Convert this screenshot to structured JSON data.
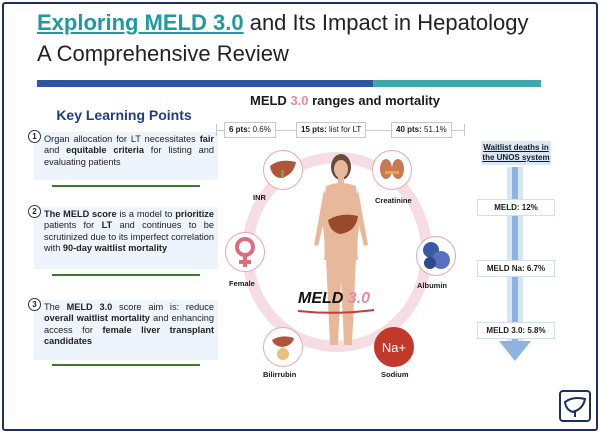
{
  "header": {
    "title_highlight": "Exploring MELD 3.0",
    "title_rest": " and Its Impact in Hepatology",
    "subtitle": "A Comprehensive Review"
  },
  "key_points": {
    "heading": "Key Learning Points",
    "items": [
      {
        "number": "1",
        "t1": "Organ allocation for LT necessitates ",
        "b1": "fair",
        "t2": " and ",
        "b2": "equitable criteria",
        "t3": " for listing and evaluating patients"
      },
      {
        "number": "2",
        "b1": "The MELD score",
        "t1": " is a model to ",
        "b2": "prioritize",
        "t2": " patients for ",
        "b3": "LT",
        "t3": " and continues to be scrutinized due to its imperfect correlation with ",
        "b4": "90-day waitlist mortality"
      },
      {
        "number": "3",
        "t1": "The ",
        "b1": "MELD 3.0",
        "t2": " score aim is: reduce ",
        "b2": "overall waitlist mortality",
        "t3": " and enhancing access for ",
        "b3": "female liver transplant candidates"
      }
    ]
  },
  "center": {
    "title_a": "MELD ",
    "title_b": "3.0",
    "title_c": " ranges and mortality",
    "ranges": [
      {
        "bold": "6 pts:",
        "rest": " 0.6%"
      },
      {
        "bold": "15 pts:",
        "rest": " list for LT"
      },
      {
        "bold": "40 pts:",
        "rest": " 51.1%"
      }
    ],
    "labels": {
      "inr": "INR",
      "creatinine": "Creatinine",
      "female": "Female",
      "albumin": "Albumin",
      "bilirubin": "Bilirrubin",
      "sodium": "Sodium",
      "sodium_symbol": "Na+"
    },
    "meld_a": "MELD",
    "meld_b": " 3.0"
  },
  "waitlist": {
    "heading": "Waitlist deaths in the UNOS system",
    "rows": [
      "MELD: 12%",
      "MELD Na: 6.7%",
      "MELD 3.0: 5.8%"
    ]
  },
  "colors": {
    "navy": "#1d2e63",
    "teal": "#1f9aa0",
    "blue_bar": "#2e56a0",
    "teal_bar": "#3fa8a8",
    "pink": "#e98aa0",
    "ring": "#f6dde3"
  }
}
